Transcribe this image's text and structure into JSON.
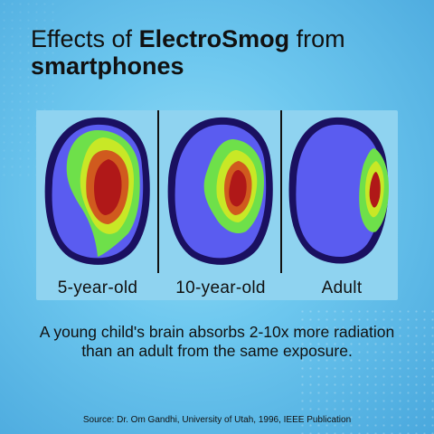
{
  "title": {
    "part1": "Effects of ",
    "part2": "ElectroSmog",
    "part3": " from",
    "line2": "smartphones"
  },
  "scans": [
    {
      "label": "5-year-old"
    },
    {
      "label": "10-year-old"
    },
    {
      "label": "Adult"
    }
  ],
  "caption": {
    "line1": "A young child's brain absorbs 2-10x more radiation",
    "line2": "than an adult from the same exposure."
  },
  "source": "Source: Dr. Om Gandhi, University of Utah, 1996, IEEE Publication",
  "colors": {
    "outline": "#1a1060",
    "cool": "#5a5cf0",
    "green": "#6ee04a",
    "yellow": "#c8e826",
    "orange": "#d05a1e",
    "red": "#b01818"
  }
}
